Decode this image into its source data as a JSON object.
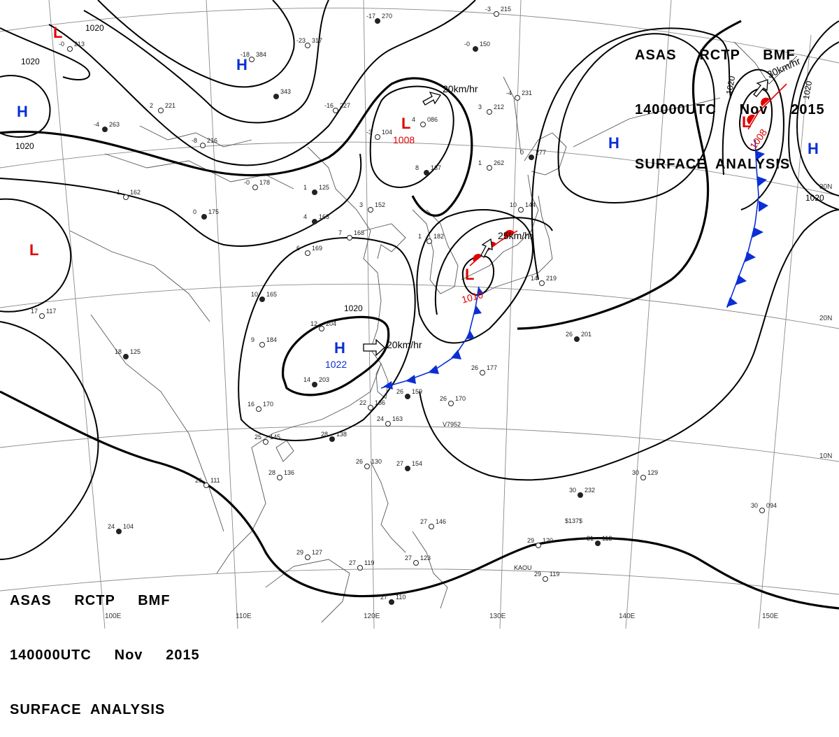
{
  "header": {
    "top_right": [
      "ASAS     RCTP     BMF",
      "140000UTC     Nov     2015",
      "SURFACE  ANALYSIS"
    ],
    "bottom_left": [
      "ASAS     RCTP     BMF",
      "140000UTC     Nov     2015",
      "SURFACE  ANALYSIS"
    ]
  },
  "colors": {
    "high": "#0a2fd6",
    "low": "#e00000",
    "cold_front": "#0a2fd6",
    "warm_front": "#e00000",
    "isobar": "#000000"
  },
  "pressure_centers": {
    "high_north": "H",
    "high_west": "H",
    "high_main": "H",
    "high_main_value": "1022",
    "high_pacific": "H",
    "high_east": "H",
    "low_north": "L",
    "low_west": "L",
    "low_mongolia": "L",
    "low_mongolia_value": "1008",
    "low_korea": "L",
    "low_korea_value": "1010",
    "low_ne": "L",
    "low_ne_value": "1008"
  },
  "isobar_labels": {
    "a": "1020",
    "b": "1020",
    "c": "1020",
    "d": "1020",
    "e": "1020",
    "f": "1020",
    "g": "1020"
  },
  "motion": {
    "m1": "20km/hr",
    "m2": "20km/hr",
    "m3": "25km/hr",
    "m4": "30km/hr"
  },
  "lon_labels": {
    "l100": "100E",
    "l110": "110E",
    "l120": "120E",
    "l130": "130E",
    "l140": "140E",
    "l150": "150E"
  },
  "lat_labels": {
    "n10": "10N",
    "n20": "20N",
    "n30": "30N"
  },
  "stations": [
    {
      "t": "270",
      "p": "-17"
    },
    {
      "t": "317",
      "p": "-23"
    },
    {
      "t": "384",
      "p": "-18"
    },
    {
      "t": "343",
      "p": ""
    },
    {
      "t": "227",
      "p": "-16"
    },
    {
      "t": "221",
      "p": "2"
    },
    {
      "t": "263",
      "p": "-4"
    },
    {
      "t": "216",
      "p": "-8"
    },
    {
      "t": "178",
      "p": "-0"
    },
    {
      "t": "125",
      "p": "1"
    },
    {
      "t": "104",
      "p": "-3"
    },
    {
      "t": "086",
      "p": "4"
    },
    {
      "t": "137",
      "p": "8"
    },
    {
      "t": "212",
      "p": "3"
    },
    {
      "t": "231",
      "p": "-4"
    },
    {
      "t": "277",
      "p": "0"
    },
    {
      "t": "262",
      "p": "1"
    },
    {
      "t": "152",
      "p": "3"
    },
    {
      "t": "163",
      "p": "4"
    },
    {
      "t": "168",
      "p": "7"
    },
    {
      "t": "169",
      "p": "6"
    },
    {
      "t": "165",
      "p": "10"
    },
    {
      "t": "184",
      "p": "9"
    },
    {
      "t": "204",
      "p": "12"
    },
    {
      "t": "203",
      "p": "14"
    },
    {
      "t": "170",
      "p": "16"
    },
    {
      "t": "145",
      "p": "25"
    },
    {
      "t": "138",
      "p": "28"
    },
    {
      "t": "163",
      "p": "24"
    },
    {
      "t": "166",
      "p": "22"
    },
    {
      "t": "159",
      "p": "26"
    },
    {
      "t": "170",
      "p": "26"
    },
    {
      "t": "177",
      "p": "26"
    },
    {
      "t": "201",
      "p": "26"
    },
    {
      "t": "219",
      "p": "14"
    },
    {
      "t": "129",
      "p": "30"
    },
    {
      "t": "232",
      "p": "30"
    },
    {
      "t": "094",
      "p": "30"
    },
    {
      "t": "120",
      "p": "29"
    },
    {
      "t": "112",
      "p": "31"
    },
    {
      "t": "119",
      "p": "29"
    },
    {
      "t": "111",
      "p": "26"
    },
    {
      "t": "104",
      "p": "24"
    },
    {
      "t": "127",
      "p": "29"
    },
    {
      "t": "119",
      "p": "27"
    },
    {
      "t": "110",
      "p": "27"
    },
    {
      "t": "136",
      "p": "28"
    },
    {
      "t": "130",
      "p": "26"
    },
    {
      "t": "154",
      "p": "27"
    },
    {
      "t": "146",
      "p": "27"
    },
    {
      "t": "123",
      "p": "27"
    },
    {
      "t": "125",
      "p": "18"
    },
    {
      "t": "117",
      "p": "17"
    },
    {
      "t": "162",
      "p": "-1"
    },
    {
      "t": "175",
      "p": "0"
    },
    {
      "t": "182",
      "p": "1"
    },
    {
      "t": "144",
      "p": "10"
    },
    {
      "t": "150",
      "p": "-0"
    },
    {
      "t": "215",
      "p": "-3"
    },
    {
      "t": "213",
      "p": "-0"
    }
  ],
  "station_tags": {
    "ship1": "V7952",
    "ship2": "KAOU",
    "ship3": "$137$"
  }
}
